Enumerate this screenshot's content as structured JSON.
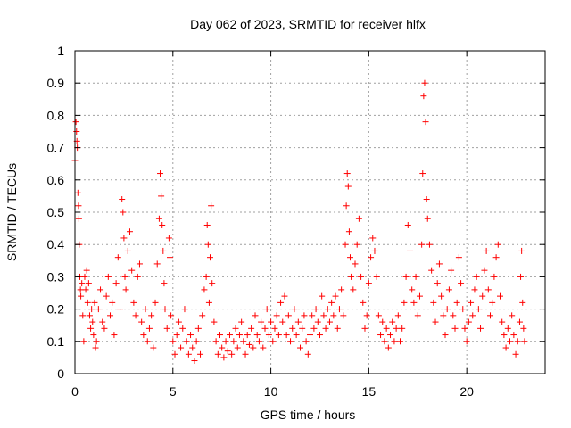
{
  "chart_data": {
    "type": "scatter",
    "title": "Day 062 of 2023, SRMTID for receiver hlfx",
    "xlabel": "GPS time / hours",
    "ylabel": "SRMTID / TECUs",
    "xlim": [
      0,
      24
    ],
    "ylim": [
      0,
      1
    ],
    "xticks": [
      0,
      5,
      10,
      15,
      20
    ],
    "xtick_labels": [
      "0",
      "5",
      "10",
      "15",
      "20"
    ],
    "yticks": [
      0,
      0.1,
      0.2,
      0.3,
      0.4,
      0.5,
      0.6,
      0.7,
      0.8,
      0.9,
      1
    ],
    "ytick_labels": [
      "0",
      "0.1",
      "0.2",
      "0.3",
      "0.4",
      "0.5",
      "0.6",
      "0.7",
      "0.8",
      "0.9",
      "1"
    ],
    "grid": true,
    "marker": "+",
    "color": "#ff0000",
    "series": [
      {
        "name": "SRMTID",
        "points": [
          [
            0.0,
            0.66
          ],
          [
            0.05,
            0.78
          ],
          [
            0.08,
            0.75
          ],
          [
            0.1,
            0.72
          ],
          [
            0.12,
            0.7
          ],
          [
            0.15,
            0.56
          ],
          [
            0.18,
            0.52
          ],
          [
            0.2,
            0.48
          ],
          [
            0.22,
            0.4
          ],
          [
            0.25,
            0.3
          ],
          [
            0.28,
            0.26
          ],
          [
            0.3,
            0.24
          ],
          [
            0.35,
            0.28
          ],
          [
            0.4,
            0.18
          ],
          [
            0.45,
            0.1
          ],
          [
            0.5,
            0.3
          ],
          [
            0.55,
            0.26
          ],
          [
            0.6,
            0.32
          ],
          [
            0.65,
            0.22
          ],
          [
            0.7,
            0.28
          ],
          [
            0.75,
            0.18
          ],
          [
            0.8,
            0.14
          ],
          [
            0.85,
            0.2
          ],
          [
            0.9,
            0.16
          ],
          [
            0.95,
            0.12
          ],
          [
            1.0,
            0.22
          ],
          [
            1.05,
            0.08
          ],
          [
            1.1,
            0.1
          ],
          [
            1.2,
            0.2
          ],
          [
            1.3,
            0.26
          ],
          [
            1.4,
            0.16
          ],
          [
            1.5,
            0.14
          ],
          [
            1.6,
            0.24
          ],
          [
            1.7,
            0.3
          ],
          [
            1.8,
            0.18
          ],
          [
            1.9,
            0.22
          ],
          [
            2.0,
            0.12
          ],
          [
            2.1,
            0.28
          ],
          [
            2.2,
            0.36
          ],
          [
            2.3,
            0.2
          ],
          [
            2.4,
            0.54
          ],
          [
            2.45,
            0.5
          ],
          [
            2.5,
            0.42
          ],
          [
            2.55,
            0.3
          ],
          [
            2.6,
            0.26
          ],
          [
            2.7,
            0.38
          ],
          [
            2.8,
            0.44
          ],
          [
            2.9,
            0.32
          ],
          [
            3.0,
            0.22
          ],
          [
            3.1,
            0.18
          ],
          [
            3.2,
            0.3
          ],
          [
            3.3,
            0.34
          ],
          [
            3.4,
            0.16
          ],
          [
            3.5,
            0.12
          ],
          [
            3.6,
            0.2
          ],
          [
            3.7,
            0.1
          ],
          [
            3.8,
            0.14
          ],
          [
            3.9,
            0.18
          ],
          [
            4.0,
            0.08
          ],
          [
            4.1,
            0.22
          ],
          [
            4.2,
            0.34
          ],
          [
            4.3,
            0.48
          ],
          [
            4.35,
            0.62
          ],
          [
            4.4,
            0.55
          ],
          [
            4.45,
            0.46
          ],
          [
            4.5,
            0.38
          ],
          [
            4.55,
            0.28
          ],
          [
            4.6,
            0.2
          ],
          [
            4.7,
            0.14
          ],
          [
            4.8,
            0.42
          ],
          [
            4.85,
            0.36
          ],
          [
            4.9,
            0.18
          ],
          [
            5.0,
            0.1
          ],
          [
            5.1,
            0.06
          ],
          [
            5.2,
            0.12
          ],
          [
            5.3,
            0.16
          ],
          [
            5.4,
            0.08
          ],
          [
            5.5,
            0.14
          ],
          [
            5.6,
            0.2
          ],
          [
            5.7,
            0.1
          ],
          [
            5.8,
            0.06
          ],
          [
            5.9,
            0.12
          ],
          [
            6.0,
            0.08
          ],
          [
            6.1,
            0.04
          ],
          [
            6.2,
            0.1
          ],
          [
            6.3,
            0.14
          ],
          [
            6.4,
            0.06
          ],
          [
            6.5,
            0.18
          ],
          [
            6.6,
            0.26
          ],
          [
            6.7,
            0.3
          ],
          [
            6.75,
            0.46
          ],
          [
            6.8,
            0.4
          ],
          [
            6.85,
            0.22
          ],
          [
            6.9,
            0.36
          ],
          [
            6.95,
            0.52
          ],
          [
            7.0,
            0.28
          ],
          [
            7.1,
            0.16
          ],
          [
            7.2,
            0.1
          ],
          [
            7.3,
            0.06
          ],
          [
            7.4,
            0.12
          ],
          [
            7.5,
            0.08
          ],
          [
            7.6,
            0.05
          ],
          [
            7.7,
            0.1
          ],
          [
            7.8,
            0.07
          ],
          [
            7.9,
            0.12
          ],
          [
            8.0,
            0.06
          ],
          [
            8.1,
            0.1
          ],
          [
            8.2,
            0.14
          ],
          [
            8.3,
            0.08
          ],
          [
            8.4,
            0.12
          ],
          [
            8.5,
            0.16
          ],
          [
            8.6,
            0.1
          ],
          [
            8.7,
            0.06
          ],
          [
            8.8,
            0.12
          ],
          [
            8.9,
            0.09
          ],
          [
            9.0,
            0.14
          ],
          [
            9.1,
            0.08
          ],
          [
            9.2,
            0.18
          ],
          [
            9.3,
            0.12
          ],
          [
            9.4,
            0.1
          ],
          [
            9.5,
            0.16
          ],
          [
            9.6,
            0.08
          ],
          [
            9.7,
            0.14
          ],
          [
            9.8,
            0.2
          ],
          [
            9.9,
            0.12
          ],
          [
            10.0,
            0.16
          ],
          [
            10.1,
            0.1
          ],
          [
            10.2,
            0.14
          ],
          [
            10.3,
            0.18
          ],
          [
            10.4,
            0.12
          ],
          [
            10.5,
            0.22
          ],
          [
            10.6,
            0.16
          ],
          [
            10.7,
            0.24
          ],
          [
            10.8,
            0.12
          ],
          [
            10.9,
            0.18
          ],
          [
            11.0,
            0.1
          ],
          [
            11.1,
            0.14
          ],
          [
            11.2,
            0.2
          ],
          [
            11.3,
            0.12
          ],
          [
            11.4,
            0.16
          ],
          [
            11.5,
            0.08
          ],
          [
            11.6,
            0.14
          ],
          [
            11.7,
            0.18
          ],
          [
            11.8,
            0.1
          ],
          [
            11.9,
            0.06
          ],
          [
            12.0,
            0.12
          ],
          [
            12.1,
            0.18
          ],
          [
            12.2,
            0.14
          ],
          [
            12.3,
            0.2
          ],
          [
            12.4,
            0.16
          ],
          [
            12.5,
            0.12
          ],
          [
            12.6,
            0.24
          ],
          [
            12.7,
            0.18
          ],
          [
            12.8,
            0.14
          ],
          [
            12.9,
            0.2
          ],
          [
            13.0,
            0.16
          ],
          [
            13.1,
            0.22
          ],
          [
            13.2,
            0.18
          ],
          [
            13.3,
            0.24
          ],
          [
            13.4,
            0.14
          ],
          [
            13.5,
            0.2
          ],
          [
            13.6,
            0.26
          ],
          [
            13.7,
            0.18
          ],
          [
            13.8,
            0.4
          ],
          [
            13.85,
            0.52
          ],
          [
            13.9,
            0.62
          ],
          [
            13.95,
            0.58
          ],
          [
            14.0,
            0.44
          ],
          [
            14.05,
            0.36
          ],
          [
            14.1,
            0.3
          ],
          [
            14.2,
            0.26
          ],
          [
            14.3,
            0.34
          ],
          [
            14.4,
            0.4
          ],
          [
            14.5,
            0.48
          ],
          [
            14.6,
            0.3
          ],
          [
            14.7,
            0.22
          ],
          [
            14.8,
            0.14
          ],
          [
            14.9,
            0.18
          ],
          [
            15.0,
            0.28
          ],
          [
            15.1,
            0.36
          ],
          [
            15.2,
            0.42
          ],
          [
            15.3,
            0.38
          ],
          [
            15.4,
            0.3
          ],
          [
            15.5,
            0.18
          ],
          [
            15.6,
            0.12
          ],
          [
            15.7,
            0.16
          ],
          [
            15.8,
            0.1
          ],
          [
            15.9,
            0.14
          ],
          [
            16.0,
            0.08
          ],
          [
            16.1,
            0.12
          ],
          [
            16.2,
            0.16
          ],
          [
            16.3,
            0.1
          ],
          [
            16.4,
            0.14
          ],
          [
            16.5,
            0.18
          ],
          [
            16.6,
            0.1
          ],
          [
            16.7,
            0.14
          ],
          [
            16.8,
            0.22
          ],
          [
            16.9,
            0.3
          ],
          [
            17.0,
            0.46
          ],
          [
            17.1,
            0.38
          ],
          [
            17.2,
            0.26
          ],
          [
            17.3,
            0.22
          ],
          [
            17.4,
            0.3
          ],
          [
            17.5,
            0.18
          ],
          [
            17.6,
            0.24
          ],
          [
            17.7,
            0.4
          ],
          [
            17.75,
            0.62
          ],
          [
            17.8,
            0.86
          ],
          [
            17.85,
            0.9
          ],
          [
            17.9,
            0.78
          ],
          [
            17.95,
            0.54
          ],
          [
            18.0,
            0.48
          ],
          [
            18.1,
            0.4
          ],
          [
            18.2,
            0.32
          ],
          [
            18.3,
            0.22
          ],
          [
            18.4,
            0.16
          ],
          [
            18.5,
            0.28
          ],
          [
            18.6,
            0.34
          ],
          [
            18.7,
            0.24
          ],
          [
            18.8,
            0.18
          ],
          [
            18.9,
            0.12
          ],
          [
            19.0,
            0.2
          ],
          [
            19.1,
            0.26
          ],
          [
            19.2,
            0.32
          ],
          [
            19.3,
            0.18
          ],
          [
            19.4,
            0.14
          ],
          [
            19.5,
            0.22
          ],
          [
            19.6,
            0.36
          ],
          [
            19.7,
            0.28
          ],
          [
            19.8,
            0.2
          ],
          [
            19.9,
            0.14
          ],
          [
            20.0,
            0.1
          ],
          [
            20.1,
            0.16
          ],
          [
            20.2,
            0.22
          ],
          [
            20.3,
            0.18
          ],
          [
            20.4,
            0.26
          ],
          [
            20.5,
            0.3
          ],
          [
            20.6,
            0.2
          ],
          [
            20.7,
            0.14
          ],
          [
            20.8,
            0.24
          ],
          [
            20.9,
            0.32
          ],
          [
            21.0,
            0.38
          ],
          [
            21.1,
            0.26
          ],
          [
            21.2,
            0.18
          ],
          [
            21.3,
            0.22
          ],
          [
            21.4,
            0.3
          ],
          [
            21.5,
            0.36
          ],
          [
            21.6,
            0.4
          ],
          [
            21.7,
            0.24
          ],
          [
            21.8,
            0.16
          ],
          [
            21.9,
            0.12
          ],
          [
            22.0,
            0.08
          ],
          [
            22.1,
            0.14
          ],
          [
            22.2,
            0.1
          ],
          [
            22.3,
            0.18
          ],
          [
            22.4,
            0.12
          ],
          [
            22.5,
            0.06
          ],
          [
            22.6,
            0.1
          ],
          [
            22.7,
            0.16
          ],
          [
            22.75,
            0.3
          ],
          [
            22.8,
            0.38
          ],
          [
            22.85,
            0.22
          ],
          [
            22.9,
            0.14
          ],
          [
            22.95,
            0.1
          ]
        ]
      }
    ]
  }
}
